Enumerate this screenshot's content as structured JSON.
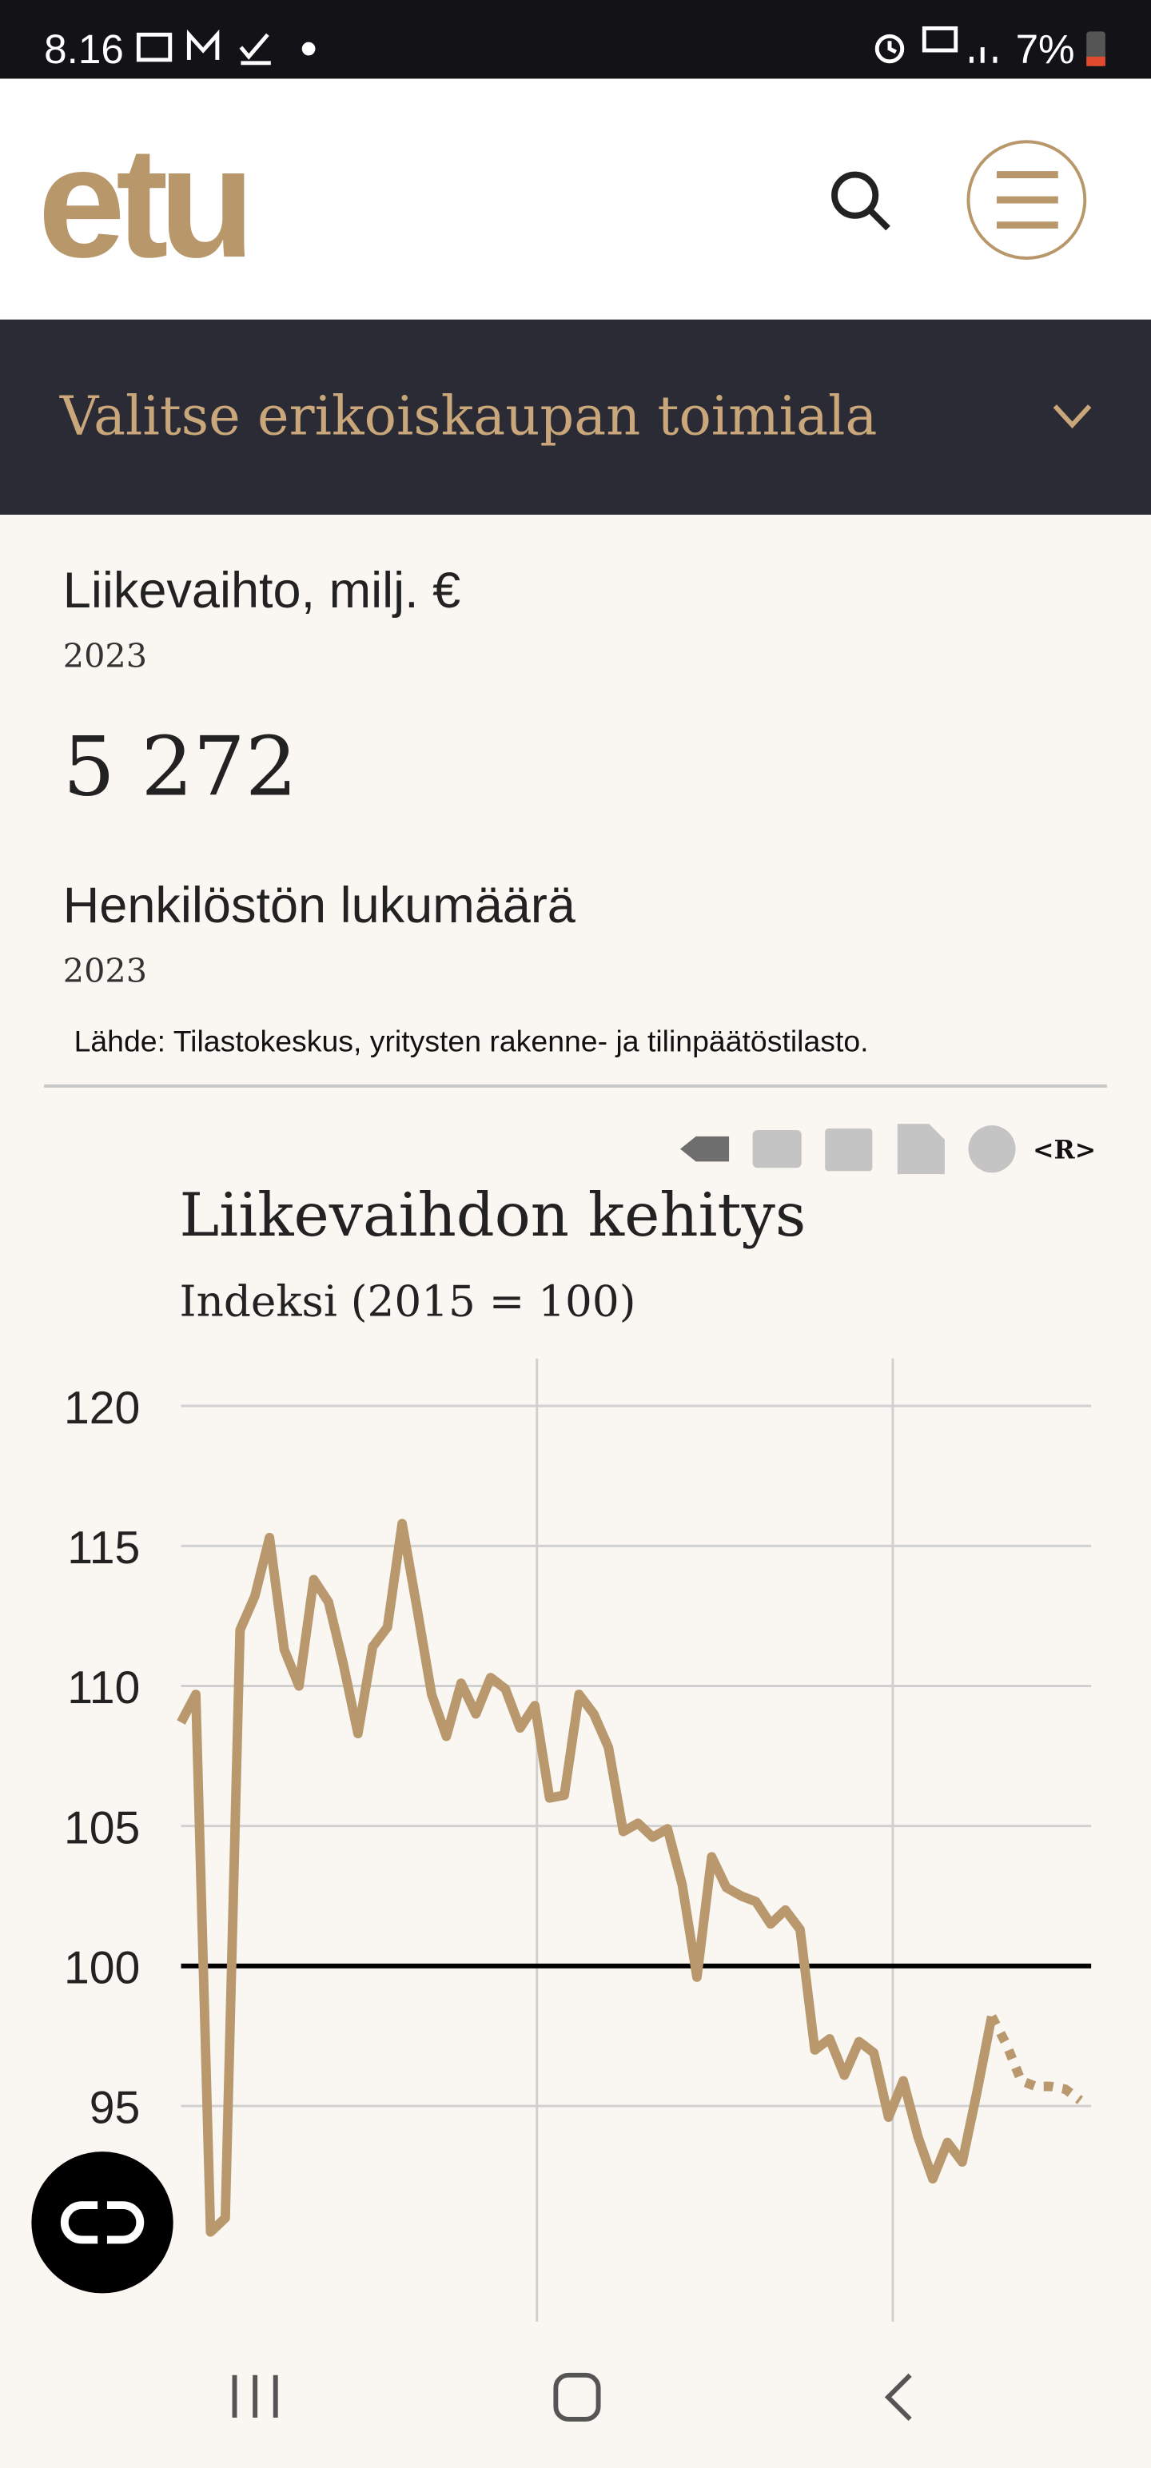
{
  "status_bar": {
    "time": "8.16",
    "battery": "7%"
  },
  "header": {
    "logo": "etu"
  },
  "dropdown": {
    "label": "Valitse erikoiskaupan toimiala"
  },
  "stats": [
    {
      "label": "Liikevaihto, milj. €",
      "year": "2023",
      "value": "5 272"
    },
    {
      "label": "Henkilöstön lukumäärä",
      "year": "2023"
    }
  ],
  "source": "Lähde: Tilastokeskus, yritysten rakenne- ja tilinpäätöstilasto.",
  "toolbar": {
    "r_label": "<R>"
  },
  "chart_data": {
    "type": "line",
    "title": "Liikevaihdon kehitys",
    "subtitle": "Indeksi (2015 = 100)",
    "categories": [
      null,
      null,
      null,
      null,
      null,
      null,
      null,
      null,
      null,
      null,
      null,
      null,
      null,
      null,
      null,
      null,
      null,
      null,
      null,
      null,
      null,
      null,
      null,
      null,
      null,
      null,
      null,
      null,
      null,
      null,
      null,
      null,
      null,
      null,
      null,
      null,
      null,
      null,
      null,
      null,
      null,
      null,
      null,
      null,
      null,
      null,
      null,
      null,
      null,
      null,
      null,
      null,
      null,
      null,
      null,
      null,
      null,
      null,
      null,
      null,
      null,
      null
    ],
    "series": [
      {
        "color": "#b8986c",
        "style": "solid",
        "values": [
          108.7,
          109.7,
          90.5,
          91,
          112,
          113.2,
          115.3,
          111.3,
          110,
          113.8,
          113,
          110.8,
          108.3,
          111.4,
          112.1,
          115.8,
          112.8,
          109.7,
          108.2,
          110.1,
          109,
          110.3,
          109.9,
          108.5,
          109.3,
          106,
          106.1,
          109.7,
          109,
          107.8,
          104.8,
          105.1,
          104.6,
          104.9,
          102.9,
          99.6,
          103.9,
          102.8,
          102.5,
          102.3,
          101.5,
          102,
          101.3,
          97,
          97.4,
          96.1,
          97.3,
          96.9,
          94.6,
          95.9,
          93.9,
          92.4,
          93.7,
          93,
          95.5,
          98.2,
          null,
          null,
          null,
          null,
          null,
          null
        ]
      },
      {
        "color": "#b8986c",
        "style": "dotted",
        "values": [
          null,
          null,
          null,
          null,
          null,
          null,
          null,
          null,
          null,
          null,
          null,
          null,
          null,
          null,
          null,
          null,
          null,
          null,
          null,
          null,
          null,
          null,
          null,
          null,
          null,
          null,
          null,
          null,
          null,
          null,
          null,
          null,
          null,
          null,
          null,
          null,
          null,
          null,
          null,
          null,
          null,
          null,
          null,
          null,
          null,
          null,
          null,
          null,
          null,
          null,
          null,
          null,
          null,
          null,
          null,
          98.2,
          97.2,
          95.9,
          95.7,
          95.7,
          95.6,
          95.2
        ]
      }
    ],
    "ylim": [
      87.3,
      121.7
    ],
    "yticks": [
      95,
      100,
      105,
      110,
      115,
      120
    ],
    "baseline": 100,
    "grid": true
  }
}
